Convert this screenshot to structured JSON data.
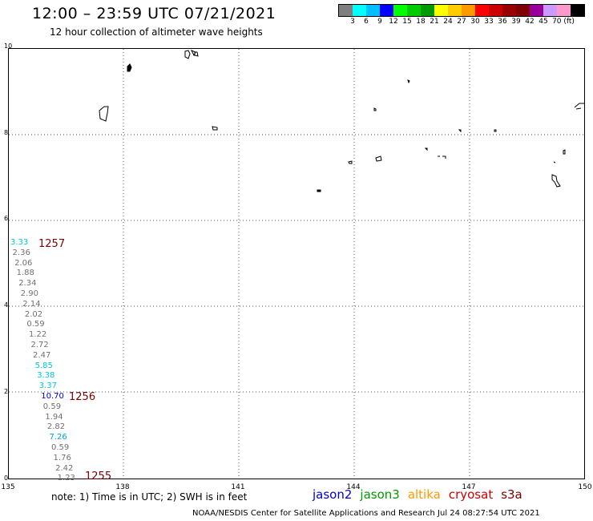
{
  "header": {
    "title": "12:00 – 23:59 UTC 07/21/2021",
    "subtitle": "12 hour collection of altimeter wave heights"
  },
  "colorbar": {
    "colors": [
      "#7f7f7f",
      "#00ffff",
      "#00bfff",
      "#0000ff",
      "#00ff00",
      "#00cc00",
      "#009900",
      "#ffff00",
      "#ffcc00",
      "#ff9900",
      "#ff0000",
      "#cc0000",
      "#990000",
      "#7f0000",
      "#990099",
      "#cc99ff",
      "#ff99cc",
      "#000000"
    ],
    "labels": [
      "3",
      "6",
      "9",
      "12",
      "15",
      "18",
      "21",
      "24",
      "27",
      "30",
      "33",
      "36",
      "39",
      "42",
      "45",
      "70 (ft)"
    ]
  },
  "axes": {
    "x_ticks": [
      "135",
      "138",
      "141",
      "144",
      "147",
      "150"
    ],
    "y_ticks": [
      "10",
      "8",
      "6",
      "4",
      "2",
      "0"
    ]
  },
  "observations": [
    {
      "value": "3.33",
      "color": "#00c8d8"
    },
    {
      "value": "2.36",
      "color": "#707070"
    },
    {
      "value": "2.06",
      "color": "#707070"
    },
    {
      "value": "1.88",
      "color": "#707070"
    },
    {
      "value": "2.34",
      "color": "#707070"
    },
    {
      "value": "2.90",
      "color": "#707070"
    },
    {
      "value": "2.14",
      "color": "#707070"
    },
    {
      "value": "2.02",
      "color": "#707070"
    },
    {
      "value": "0.59",
      "color": "#707070"
    },
    {
      "value": "1.22",
      "color": "#707070"
    },
    {
      "value": "2.72",
      "color": "#707070"
    },
    {
      "value": "2.47",
      "color": "#707070"
    },
    {
      "value": "5.85",
      "color": "#00c8d8"
    },
    {
      "value": "3.38",
      "color": "#00c8d8"
    },
    {
      "value": "3.37",
      "color": "#00c8d8"
    },
    {
      "value": "10.70",
      "color": "#0000cc"
    },
    {
      "value": "0.59",
      "color": "#707070"
    },
    {
      "value": "1.94",
      "color": "#707070"
    },
    {
      "value": "2.82",
      "color": "#707070"
    },
    {
      "value": "7.26",
      "color": "#00a0e0"
    },
    {
      "value": "0.59",
      "color": "#707070"
    },
    {
      "value": "1.76",
      "color": "#707070"
    },
    {
      "value": "2.42",
      "color": "#707070"
    },
    {
      "value": "1.23",
      "color": "#707070"
    }
  ],
  "pass_times": [
    "1257",
    "1256",
    "1255"
  ],
  "note": "note: 1) Time is in UTC; 2) SWH is in feet",
  "legend": [
    {
      "name": "jason2",
      "color": "#0000cc"
    },
    {
      "name": "jason3",
      "color": "#009900"
    },
    {
      "name": "altika",
      "color": "#ff9900"
    },
    {
      "name": "cryosat",
      "color": "#cc0000"
    },
    {
      "name": "s3a",
      "color": "#7a0000"
    }
  ],
  "footer": "NOAA/NESDIS Center for Satellite Applications and Research   Jul 24 08:27:54 UTC 2021"
}
